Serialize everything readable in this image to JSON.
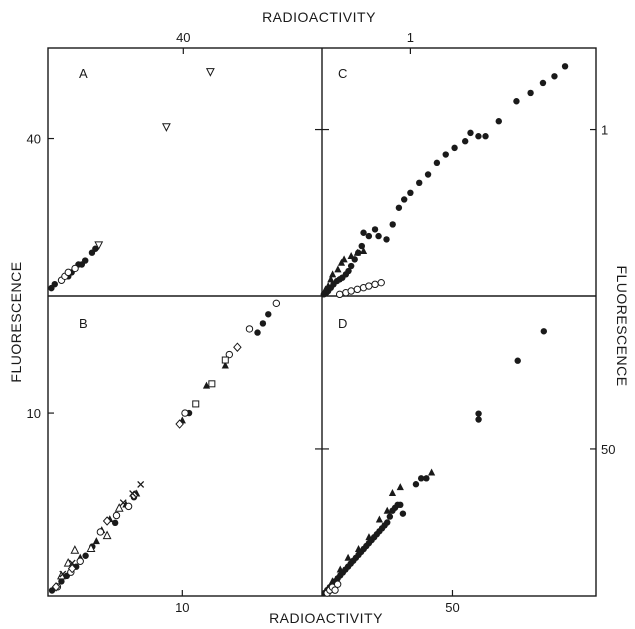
{
  "chart_data": {
    "type": "scatter",
    "axis_titles": {
      "top": "RADIOACTIVITY",
      "bottom": "RADIOACTIVITY",
      "left": "FLUORESCENCE",
      "right": "FLUORESCENCE"
    },
    "panels": [
      {
        "label": "A",
        "x_ticks": [
          {
            "value": 40,
            "label": "40"
          }
        ],
        "y_ticks": [
          {
            "value": 40,
            "label": "40"
          }
        ],
        "xlim": [
          0,
          81
        ],
        "ylim": [
          0,
          63
        ],
        "series": [
          {
            "marker": "filled-circle",
            "points": [
              [
                1,
                2
              ],
              [
                2,
                3
              ],
              [
                6,
                5
              ],
              [
                7,
                6
              ],
              [
                8,
                7
              ],
              [
                9,
                8
              ],
              [
                10,
                8
              ],
              [
                11,
                9
              ],
              [
                13,
                11
              ],
              [
                14,
                12
              ]
            ]
          },
          {
            "marker": "open-circle",
            "points": [
              [
                4,
                4
              ],
              [
                5,
                5
              ],
              [
                6,
                6
              ],
              [
                8,
                7
              ]
            ]
          },
          {
            "marker": "open-triangle-down",
            "points": [
              [
                15,
                13
              ],
              [
                35,
                43
              ],
              [
                48,
                57
              ]
            ]
          }
        ]
      },
      {
        "label": "B",
        "x_ticks": [
          {
            "value": 10,
            "label": "10"
          }
        ],
        "y_ticks": [
          {
            "value": 10,
            "label": "10"
          }
        ],
        "xlim": [
          0,
          20.4
        ],
        "ylim": [
          0,
          16.4
        ],
        "series": [
          {
            "marker": "filled-circle",
            "points": [
              [
                0.3,
                0.3
              ],
              [
                1,
                0.8
              ],
              [
                1.4,
                1.1
              ],
              [
                2.1,
                1.6
              ],
              [
                2.8,
                2.2
              ],
              [
                3.3,
                2.7
              ],
              [
                5,
                4
              ],
              [
                6.4,
                5.4
              ],
              [
                10.5,
                10
              ],
              [
                15.6,
                14.4
              ],
              [
                16,
                14.9
              ],
              [
                16.4,
                15.4
              ]
            ]
          },
          {
            "marker": "filled-triangle",
            "points": [
              [
                2.4,
                2.1
              ],
              [
                3.6,
                3
              ],
              [
                4,
                3.6
              ],
              [
                4.6,
                4.2
              ],
              [
                5.8,
                5
              ],
              [
                6.6,
                5.6
              ],
              [
                10,
                9.6
              ],
              [
                11.8,
                11.5
              ],
              [
                13.2,
                12.6
              ]
            ]
          },
          {
            "marker": "open-circle",
            "points": [
              [
                0.7,
                0.5
              ],
              [
                1.7,
                1.3
              ],
              [
                2.4,
                1.9
              ],
              [
                3.9,
                3.5
              ],
              [
                5.1,
                4.4
              ],
              [
                6,
                4.9
              ],
              [
                10.2,
                10
              ],
              [
                13.5,
                13.2
              ],
              [
                15,
                14.6
              ],
              [
                17,
                16
              ]
            ]
          },
          {
            "marker": "open-square",
            "points": [
              [
                11,
                10.5
              ],
              [
                12.2,
                11.6
              ],
              [
                13.2,
                12.9
              ]
            ]
          },
          {
            "marker": "open-triangle",
            "points": [
              [
                1,
                1.1
              ],
              [
                1.5,
                1.8
              ],
              [
                2,
                2.5
              ],
              [
                3.2,
                2.6
              ],
              [
                4.4,
                3.3
              ],
              [
                5.3,
                4.8
              ]
            ]
          },
          {
            "marker": "open-diamond",
            "points": [
              [
                0.6,
                0.5
              ],
              [
                1.8,
                1.5
              ],
              [
                4.4,
                4.1
              ],
              [
                6.4,
                5.5
              ],
              [
                9.8,
                9.4
              ],
              [
                14.1,
                13.6
              ]
            ]
          },
          {
            "marker": "cross",
            "points": [
              [
                1.1,
                1.2
              ],
              [
                1.8,
                1.8
              ],
              [
                5.6,
                5.1
              ],
              [
                6.3,
                5.6
              ],
              [
                6.9,
                6.1
              ]
            ]
          }
        ]
      },
      {
        "label": "C",
        "x_ticks": [
          {
            "value": 1,
            "label": "1"
          }
        ],
        "y_ticks": [
          {
            "value": 1,
            "label": "1"
          }
        ],
        "xlim": [
          0,
          3.1
        ],
        "ylim": [
          0,
          1.49
        ],
        "series": [
          {
            "marker": "filled-circle",
            "points": [
              [
                0.02,
                0.01
              ],
              [
                0.05,
                0.02
              ],
              [
                0.07,
                0.03
              ],
              [
                0.1,
                0.05
              ],
              [
                0.13,
                0.07
              ],
              [
                0.17,
                0.09
              ],
              [
                0.2,
                0.1
              ],
              [
                0.23,
                0.11
              ],
              [
                0.27,
                0.13
              ],
              [
                0.3,
                0.15
              ],
              [
                0.33,
                0.18
              ],
              [
                0.37,
                0.22
              ],
              [
                0.41,
                0.26
              ],
              [
                0.45,
                0.3
              ],
              [
                0.47,
                0.38
              ],
              [
                0.53,
                0.36
              ],
              [
                0.6,
                0.4
              ],
              [
                0.64,
                0.36
              ],
              [
                0.73,
                0.34
              ],
              [
                0.8,
                0.43
              ],
              [
                0.87,
                0.53
              ],
              [
                0.93,
                0.58
              ],
              [
                1,
                0.62
              ],
              [
                1.1,
                0.68
              ],
              [
                1.2,
                0.73
              ],
              [
                1.3,
                0.8
              ],
              [
                1.4,
                0.85
              ],
              [
                1.5,
                0.89
              ],
              [
                1.62,
                0.93
              ],
              [
                1.68,
                0.98
              ],
              [
                1.77,
                0.96
              ],
              [
                1.85,
                0.96
              ],
              [
                2.0,
                1.05
              ],
              [
                2.2,
                1.17
              ],
              [
                2.36,
                1.22
              ],
              [
                2.5,
                1.28
              ],
              [
                2.63,
                1.32
              ],
              [
                2.75,
                1.38
              ]
            ]
          },
          {
            "marker": "filled-triangle",
            "points": [
              [
                0.04,
                0.04
              ],
              [
                0.07,
                0.06
              ],
              [
                0.1,
                0.1
              ],
              [
                0.12,
                0.13
              ],
              [
                0.18,
                0.16
              ],
              [
                0.22,
                0.2
              ],
              [
                0.25,
                0.22
              ],
              [
                0.33,
                0.24
              ],
              [
                0.4,
                0.26
              ],
              [
                0.47,
                0.27
              ]
            ]
          },
          {
            "marker": "open-circle",
            "points": [
              [
                0.2,
                0.01
              ],
              [
                0.27,
                0.02
              ],
              [
                0.33,
                0.03
              ],
              [
                0.4,
                0.04
              ],
              [
                0.47,
                0.05
              ],
              [
                0.53,
                0.06
              ],
              [
                0.6,
                0.07
              ],
              [
                0.67,
                0.08
              ]
            ]
          }
        ]
      },
      {
        "label": "D",
        "x_ticks": [
          {
            "value": 50,
            "label": "50"
          }
        ],
        "y_ticks": [
          {
            "value": 50,
            "label": "50"
          }
        ],
        "xlim": [
          0,
          105
        ],
        "ylim": [
          0,
          102
        ],
        "series": [
          {
            "marker": "filled-circle",
            "points": [
              [
                1,
                1
              ],
              [
                2,
                2
              ],
              [
                3,
                3
              ],
              [
                4,
                4
              ],
              [
                5,
                5
              ],
              [
                6,
                6
              ],
              [
                7,
                7
              ],
              [
                8,
                8
              ],
              [
                9,
                9
              ],
              [
                10,
                10
              ],
              [
                11,
                11
              ],
              [
                12,
                12
              ],
              [
                13,
                13
              ],
              [
                14,
                14
              ],
              [
                15,
                15
              ],
              [
                16,
                16
              ],
              [
                17,
                17
              ],
              [
                18,
                18
              ],
              [
                19,
                19
              ],
              [
                20,
                20
              ],
              [
                21,
                21
              ],
              [
                22,
                22
              ],
              [
                23,
                23
              ],
              [
                24,
                24
              ],
              [
                25,
                25
              ],
              [
                26,
                27
              ],
              [
                27,
                29
              ],
              [
                28,
                30
              ],
              [
                29,
                31
              ],
              [
                30,
                31
              ],
              [
                31,
                28
              ],
              [
                36,
                38
              ],
              [
                38,
                40
              ],
              [
                40,
                40
              ],
              [
                60,
                62
              ],
              [
                60,
                60
              ],
              [
                75,
                80
              ],
              [
                85,
                90
              ]
            ]
          },
          {
            "marker": "filled-triangle",
            "points": [
              [
                4,
                5
              ],
              [
                7,
                9
              ],
              [
                10,
                13
              ],
              [
                14,
                16
              ],
              [
                18,
                20
              ],
              [
                22,
                26
              ],
              [
                25,
                29
              ],
              [
                27,
                35
              ],
              [
                30,
                37
              ],
              [
                42,
                42
              ]
            ]
          },
          {
            "marker": "open-circle",
            "points": [
              [
                2,
                1
              ],
              [
                3,
                2
              ],
              [
                4,
                3
              ],
              [
                5,
                2
              ],
              [
                6,
                4
              ]
            ]
          }
        ]
      }
    ]
  }
}
